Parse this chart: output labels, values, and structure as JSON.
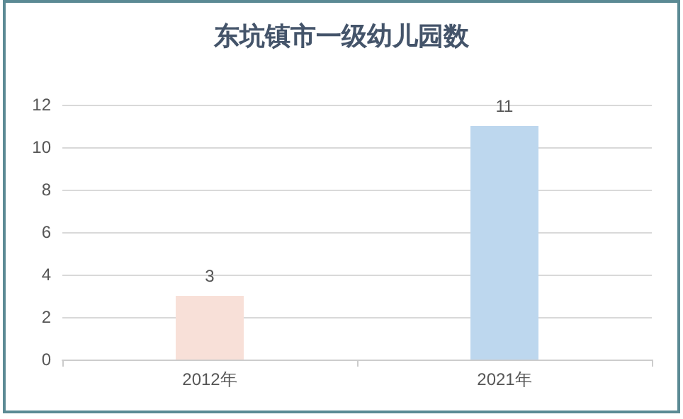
{
  "chart_data": {
    "type": "bar",
    "title": "东坑镇市一级幼儿园数",
    "categories": [
      "2012年",
      "2021年"
    ],
    "values": [
      3,
      11
    ],
    "colors": [
      "#f8e0d8",
      "#bdd7ee"
    ],
    "ylim": [
      0,
      12
    ],
    "yticks": [
      0,
      2,
      4,
      6,
      8,
      10,
      12
    ],
    "grid": "y",
    "data_labels": true
  }
}
